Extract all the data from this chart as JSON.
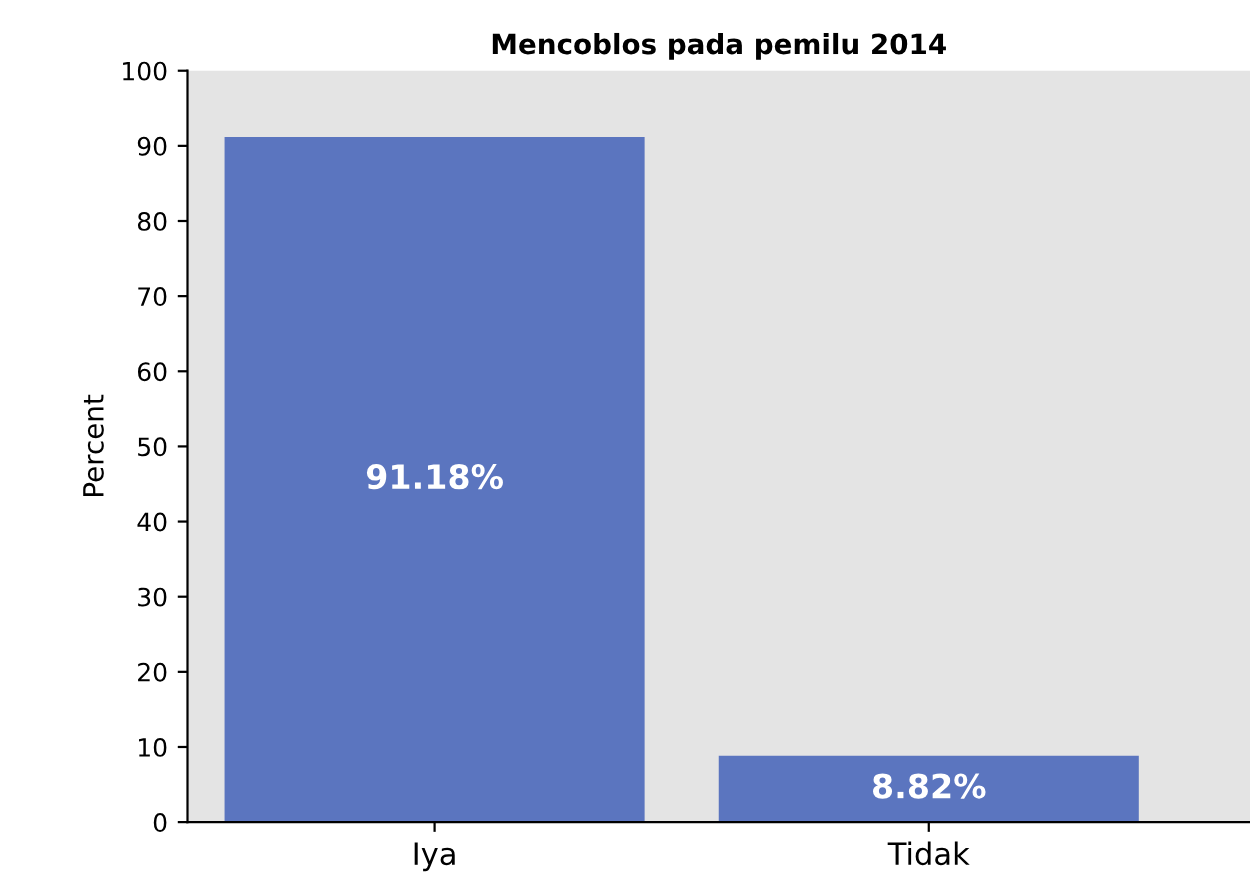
{
  "chart_data": {
    "type": "bar",
    "title": "Mencoblos pada pemilu 2014",
    "ylabel": "Percent",
    "categories": [
      "Iya",
      "Tidak"
    ],
    "values": [
      91.18,
      8.82
    ],
    "color": "#5b75bf",
    "value_labels": [
      "91.18%",
      "8.82%"
    ],
    "ylim": [
      0,
      100
    ],
    "yticks": [
      0,
      10,
      20,
      30,
      40,
      50,
      60,
      70,
      80,
      90,
      100
    ],
    "grid": false
  }
}
